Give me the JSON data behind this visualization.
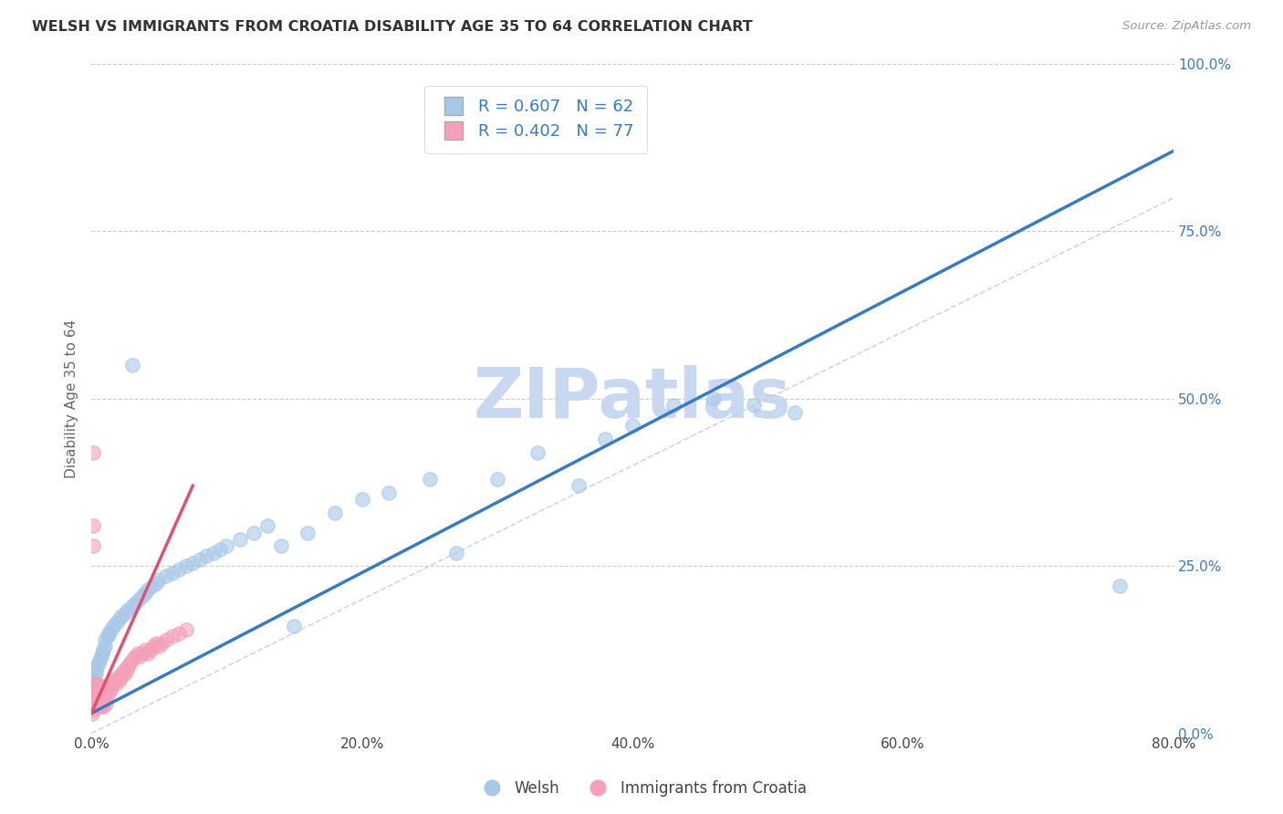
{
  "title": "WELSH VS IMMIGRANTS FROM CROATIA DISABILITY AGE 35 TO 64 CORRELATION CHART",
  "source": "Source: ZipAtlas.com",
  "ylabel": "Disability Age 35 to 64",
  "r_welsh": 0.607,
  "n_welsh": 62,
  "r_croatia": 0.402,
  "n_croatia": 77,
  "blue_scatter_color": "#a8c8e8",
  "pink_scatter_color": "#f4a0b8",
  "blue_line_color": "#3a7abf",
  "pink_line_color": "#e05070",
  "diag_color": "#cccccc",
  "watermark": "ZIPatlas",
  "watermark_color": "#c8d8f0",
  "xlim": [
    0.0,
    0.8
  ],
  "ylim": [
    0.0,
    1.0
  ],
  "xticks": [
    0.0,
    0.2,
    0.4,
    0.6,
    0.8
  ],
  "yticks": [
    0.0,
    0.25,
    0.5,
    0.75,
    1.0
  ],
  "welsh_x": [
    0.001,
    0.002,
    0.003,
    0.003,
    0.004,
    0.005,
    0.006,
    0.007,
    0.008,
    0.009,
    0.01,
    0.01,
    0.012,
    0.013,
    0.015,
    0.016,
    0.018,
    0.02,
    0.022,
    0.025,
    0.027,
    0.03,
    0.032,
    0.035,
    0.038,
    0.04,
    0.042,
    0.045,
    0.048,
    0.05,
    0.055,
    0.06,
    0.065,
    0.07,
    0.075,
    0.08,
    0.085,
    0.09,
    0.095,
    0.1,
    0.11,
    0.12,
    0.13,
    0.14,
    0.15,
    0.16,
    0.18,
    0.2,
    0.22,
    0.25,
    0.27,
    0.3,
    0.33,
    0.36,
    0.4,
    0.43,
    0.46,
    0.49,
    0.52,
    0.76,
    0.38,
    0.03
  ],
  "welsh_y": [
    0.08,
    0.085,
    0.09,
    0.095,
    0.1,
    0.105,
    0.11,
    0.115,
    0.12,
    0.125,
    0.13,
    0.14,
    0.145,
    0.15,
    0.155,
    0.16,
    0.165,
    0.17,
    0.175,
    0.18,
    0.185,
    0.19,
    0.195,
    0.2,
    0.205,
    0.21,
    0.215,
    0.22,
    0.225,
    0.23,
    0.235,
    0.24,
    0.245,
    0.25,
    0.255,
    0.26,
    0.265,
    0.27,
    0.275,
    0.28,
    0.29,
    0.3,
    0.31,
    0.28,
    0.16,
    0.3,
    0.33,
    0.35,
    0.36,
    0.38,
    0.27,
    0.38,
    0.42,
    0.37,
    0.46,
    0.49,
    0.5,
    0.49,
    0.48,
    0.22,
    0.44,
    0.55
  ],
  "croatia_x": [
    0.0005,
    0.001,
    0.001,
    0.001,
    0.001,
    0.001,
    0.001,
    0.001,
    0.001,
    0.002,
    0.002,
    0.002,
    0.002,
    0.003,
    0.003,
    0.003,
    0.003,
    0.004,
    0.004,
    0.004,
    0.004,
    0.005,
    0.005,
    0.005,
    0.005,
    0.006,
    0.006,
    0.006,
    0.007,
    0.007,
    0.007,
    0.007,
    0.008,
    0.008,
    0.008,
    0.009,
    0.009,
    0.01,
    0.01,
    0.011,
    0.011,
    0.012,
    0.013,
    0.014,
    0.015,
    0.016,
    0.017,
    0.018,
    0.019,
    0.02,
    0.021,
    0.022,
    0.023,
    0.024,
    0.025,
    0.026,
    0.027,
    0.028,
    0.03,
    0.032,
    0.034,
    0.036,
    0.038,
    0.04,
    0.042,
    0.044,
    0.046,
    0.048,
    0.05,
    0.052,
    0.055,
    0.06,
    0.065,
    0.07,
    0.001,
    0.001,
    0.001
  ],
  "croatia_y": [
    0.03,
    0.035,
    0.04,
    0.045,
    0.05,
    0.055,
    0.06,
    0.065,
    0.07,
    0.045,
    0.055,
    0.065,
    0.075,
    0.04,
    0.05,
    0.06,
    0.07,
    0.045,
    0.055,
    0.065,
    0.075,
    0.04,
    0.05,
    0.06,
    0.07,
    0.045,
    0.055,
    0.065,
    0.04,
    0.05,
    0.06,
    0.07,
    0.045,
    0.055,
    0.065,
    0.04,
    0.05,
    0.06,
    0.07,
    0.045,
    0.055,
    0.065,
    0.06,
    0.065,
    0.07,
    0.075,
    0.08,
    0.075,
    0.08,
    0.085,
    0.08,
    0.085,
    0.09,
    0.095,
    0.09,
    0.095,
    0.1,
    0.105,
    0.11,
    0.115,
    0.12,
    0.115,
    0.12,
    0.125,
    0.12,
    0.125,
    0.13,
    0.135,
    0.13,
    0.135,
    0.14,
    0.145,
    0.15,
    0.155,
    0.28,
    0.31,
    0.42
  ],
  "blue_line_x0": 0.0,
  "blue_line_y0": 0.03,
  "blue_line_x1": 0.8,
  "blue_line_y1": 0.87,
  "pink_line_x0": 0.0,
  "pink_line_y0": 0.03,
  "pink_line_x1": 0.075,
  "pink_line_y1": 0.37
}
